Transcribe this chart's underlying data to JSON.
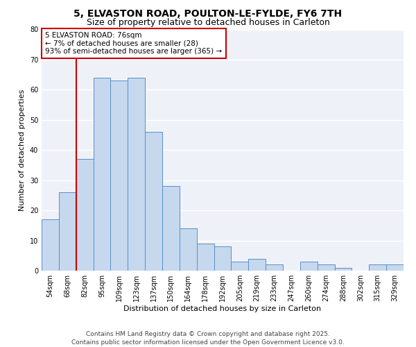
{
  "title": "5, ELVASTON ROAD, POULTON-LE-FYLDE, FY6 7TH",
  "subtitle": "Size of property relative to detached houses in Carleton",
  "xlabel": "Distribution of detached houses by size in Carleton",
  "ylabel": "Number of detached properties",
  "categories": [
    "54sqm",
    "68sqm",
    "82sqm",
    "95sqm",
    "109sqm",
    "123sqm",
    "137sqm",
    "150sqm",
    "164sqm",
    "178sqm",
    "192sqm",
    "205sqm",
    "219sqm",
    "233sqm",
    "247sqm",
    "260sqm",
    "274sqm",
    "288sqm",
    "302sqm",
    "315sqm",
    "329sqm"
  ],
  "values": [
    17,
    26,
    37,
    64,
    63,
    64,
    46,
    28,
    14,
    9,
    8,
    3,
    4,
    2,
    0,
    3,
    2,
    1,
    0,
    2,
    2
  ],
  "bar_color": "#c5d8ee",
  "bar_edge_color": "#5b8dc8",
  "ylim": [
    0,
    80
  ],
  "yticks": [
    0,
    10,
    20,
    30,
    40,
    50,
    60,
    70,
    80
  ],
  "vline_x_index": 2,
  "vline_color": "#cc0000",
  "annotation_title": "5 ELVASTON ROAD: 76sqm",
  "annotation_line1": "← 7% of detached houses are smaller (28)",
  "annotation_line2": "93% of semi-detached houses are larger (365) →",
  "annotation_box_color": "#ffffff",
  "annotation_box_edge": "#cc0000",
  "footer1": "Contains HM Land Registry data © Crown copyright and database right 2025.",
  "footer2": "Contains public sector information licensed under the Open Government Licence v3.0.",
  "bg_color": "#ffffff",
  "plot_bg_color": "#eef2f8",
  "grid_color": "#ffffff",
  "title_fontsize": 10,
  "subtitle_fontsize": 9,
  "axis_label_fontsize": 8,
  "tick_fontsize": 7,
  "annotation_fontsize": 7.5,
  "footer_fontsize": 6.5
}
